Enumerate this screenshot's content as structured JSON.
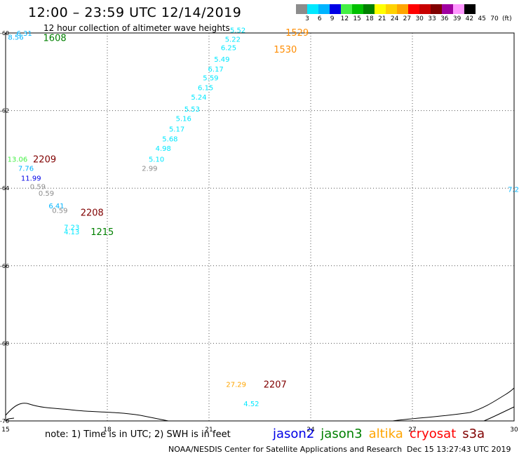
{
  "header": {
    "title": "12:00 – 23:59 UTC 12/14/2019",
    "subtitle": "12 hour collection of altimeter wave heights"
  },
  "legend": {
    "colors": [
      "#8c8c8c",
      "#00e8ff",
      "#00b4ff",
      "#0000e6",
      "#44f044",
      "#00c000",
      "#008000",
      "#ffff00",
      "#ffd200",
      "#ffa500",
      "#ff0000",
      "#c80000",
      "#800000",
      "#a000a0",
      "#ff96ff",
      "#000000"
    ],
    "labels": [
      "3",
      "6",
      "9",
      "12",
      "15",
      "18",
      "21",
      "24",
      "27",
      "30",
      "33",
      "36",
      "39",
      "42",
      "45",
      "70",
      "(ft)"
    ]
  },
  "chart_data": {
    "type": "scatter",
    "xlim": [
      15,
      30
    ],
    "ylim": [
      -70,
      -60
    ],
    "xticks": [
      "15",
      "18",
      "21",
      "24",
      "27",
      "30"
    ],
    "yticks": [
      "-60",
      "-62",
      "-64",
      "-66",
      "-68",
      "-70"
    ],
    "grid": true,
    "points": [
      {
        "x": 15.55,
        "y": -60.0,
        "label": "6.31",
        "color": "#00b4ff"
      },
      {
        "x": 15.3,
        "y": -60.1,
        "label": "8.56",
        "color": "#00b4ff"
      },
      {
        "x": 21.85,
        "y": -59.92,
        "label": "5.52",
        "color": "#00e8ff"
      },
      {
        "x": 21.7,
        "y": -60.15,
        "label": "5.22",
        "color": "#00e8ff"
      },
      {
        "x": 21.58,
        "y": -60.37,
        "label": "6.25",
        "color": "#00e8ff"
      },
      {
        "x": 21.38,
        "y": -60.67,
        "label": "5.49",
        "color": "#00e8ff"
      },
      {
        "x": 21.2,
        "y": -60.92,
        "label": "6.17",
        "color": "#00e8ff"
      },
      {
        "x": 21.05,
        "y": -61.15,
        "label": "5.59",
        "color": "#00e8ff"
      },
      {
        "x": 20.9,
        "y": -61.4,
        "label": "6.15",
        "color": "#00e8ff"
      },
      {
        "x": 20.7,
        "y": -61.65,
        "label": "5.24",
        "color": "#00e8ff"
      },
      {
        "x": 20.5,
        "y": -61.95,
        "label": "5.53",
        "color": "#00e8ff"
      },
      {
        "x": 20.25,
        "y": -62.2,
        "label": "5.16",
        "color": "#00e8ff"
      },
      {
        "x": 20.05,
        "y": -62.47,
        "label": "5.17",
        "color": "#00e8ff"
      },
      {
        "x": 19.85,
        "y": -62.72,
        "label": "5.68",
        "color": "#00e8ff"
      },
      {
        "x": 19.65,
        "y": -62.97,
        "label": "4.98",
        "color": "#00e8ff"
      },
      {
        "x": 19.45,
        "y": -63.25,
        "label": "5.10",
        "color": "#00e8ff"
      },
      {
        "x": 19.25,
        "y": -63.48,
        "label": "2.99",
        "color": "#8c8c8c"
      },
      {
        "x": 15.35,
        "y": -63.25,
        "label": "13.06",
        "color": "#44f044"
      },
      {
        "x": 15.6,
        "y": -63.48,
        "label": "7.76",
        "color": "#00b4ff"
      },
      {
        "x": 15.75,
        "y": -63.73,
        "label": "11.99",
        "color": "#0000e6"
      },
      {
        "x": 15.95,
        "y": -63.95,
        "label": "0.59",
        "color": "#8c8c8c"
      },
      {
        "x": 16.2,
        "y": -64.12,
        "label": "0.59",
        "color": "#8c8c8c"
      },
      {
        "x": 16.5,
        "y": -64.45,
        "label": "6.41",
        "color": "#00b4ff"
      },
      {
        "x": 16.6,
        "y": -64.57,
        "label": "0.59",
        "color": "#8c8c8c"
      },
      {
        "x": 16.95,
        "y": -65.0,
        "label": "7.23",
        "color": "#00e8ff"
      },
      {
        "x": 16.95,
        "y": -65.12,
        "label": "4.13",
        "color": "#00e8ff"
      },
      {
        "x": 30.0,
        "y": -64.02,
        "label": "7.2",
        "color": "#00b4ff"
      },
      {
        "x": 21.8,
        "y": -69.05,
        "label": "27.29",
        "color": "#ffa500"
      },
      {
        "x": 22.25,
        "y": -69.55,
        "label": "4.52",
        "color": "#00e8ff"
      }
    ],
    "pass_labels": [
      {
        "x": 16.45,
        "y": -60.12,
        "label": "1608",
        "color": "#008000"
      },
      {
        "x": 23.6,
        "y": -59.98,
        "label": "1529",
        "color": "#ff8c00"
      },
      {
        "x": 23.25,
        "y": -60.42,
        "label": "1530",
        "color": "#ff8c00"
      },
      {
        "x": 16.15,
        "y": -63.25,
        "label": "2209",
        "color": "#800000"
      },
      {
        "x": 17.55,
        "y": -64.62,
        "label": "2208",
        "color": "#800000"
      },
      {
        "x": 17.85,
        "y": -65.12,
        "label": "1215",
        "color": "#008000"
      },
      {
        "x": 22.95,
        "y": -69.05,
        "label": "2207",
        "color": "#800000"
      }
    ]
  },
  "footer": {
    "note": "note: 1) Time is in UTC; 2) SWH is in feet",
    "satellites": [
      {
        "name": "jason2",
        "color": "#0000e6"
      },
      {
        "name": "jason3",
        "color": "#008000"
      },
      {
        "name": "altika",
        "color": "#ffa500"
      },
      {
        "name": "cryosat",
        "color": "#ff0000"
      },
      {
        "name": "s3a",
        "color": "#800000"
      }
    ],
    "credit": "NOAA/NESDIS Center for Satellite Applications and Research",
    "timestamp": "Dec 15 13:27:43 UTC 2019"
  }
}
